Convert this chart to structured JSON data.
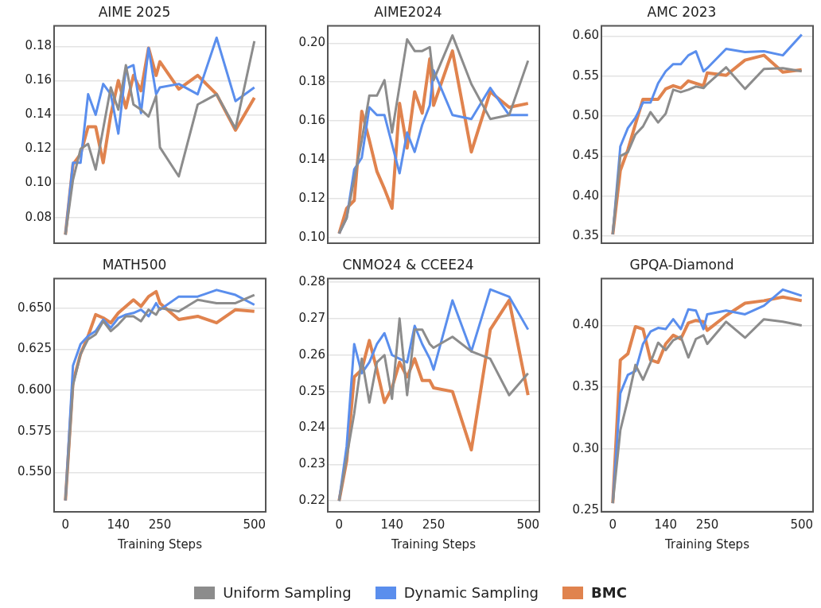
{
  "chart_data": [
    {
      "type": "line",
      "title": "AIME 2025",
      "x": [
        0,
        20,
        40,
        60,
        80,
        100,
        120,
        140,
        160,
        180,
        200,
        220,
        240,
        250,
        300,
        350,
        400,
        450,
        500
      ],
      "xlim": [
        -30,
        530
      ],
      "xticks": [
        0,
        140,
        250,
        500
      ],
      "ylim": [
        0.065,
        0.192
      ],
      "yticks": [
        0.08,
        {
          "value": 0.1,
          "label": "0.10"
        },
        0.12,
        0.14,
        0.16,
        0.18
      ],
      "grid": "y",
      "legend": "bottom",
      "tick_labels": "y",
      "series": [
        {
          "name": "Uniform Sampling",
          "color": "#8c8c8c",
          "values": [
            0.07,
            0.102,
            0.12,
            0.123,
            0.108,
            0.132,
            0.156,
            0.143,
            0.169,
            0.146,
            0.143,
            0.139,
            0.151,
            0.121,
            0.104,
            0.146,
            0.152,
            0.132,
            0.183
          ]
        },
        {
          "name": "Dynamic Sampling",
          "color": "#5a8eed",
          "values": [
            0.07,
            0.112,
            0.112,
            0.152,
            0.14,
            0.158,
            0.152,
            0.129,
            0.167,
            0.169,
            0.141,
            0.179,
            0.152,
            0.156,
            0.158,
            0.152,
            0.185,
            0.148,
            0.156
          ]
        },
        {
          "name": "BMC",
          "color": "#e0834e",
          "values": [
            0.07,
            0.111,
            0.117,
            0.133,
            0.133,
            0.112,
            0.14,
            0.16,
            0.144,
            0.163,
            0.154,
            0.179,
            0.163,
            0.171,
            0.155,
            0.163,
            0.152,
            0.131,
            0.15
          ]
        }
      ]
    },
    {
      "type": "line",
      "title": "AIME2024",
      "x": [
        0,
        20,
        40,
        60,
        80,
        100,
        120,
        140,
        160,
        180,
        200,
        220,
        240,
        250,
        300,
        350,
        400,
        450,
        500
      ],
      "xlim": [
        -30,
        530
      ],
      "xticks": [
        0,
        140,
        250,
        500
      ],
      "ylim": [
        0.097,
        0.209
      ],
      "yticks": [
        {
          "value": 0.1,
          "label": "0.10"
        },
        0.12,
        0.14,
        0.16,
        0.18,
        {
          "value": 0.2,
          "label": "0.20"
        }
      ],
      "grid": "y",
      "tick_labels": "y",
      "series": [
        {
          "color": "#8c8c8c",
          "values": [
            0.102,
            0.11,
            0.13,
            0.15,
            0.173,
            0.173,
            0.181,
            0.154,
            0.178,
            0.202,
            0.196,
            0.196,
            0.198,
            0.181,
            0.204,
            0.179,
            0.161,
            0.163,
            0.191
          ]
        },
        {
          "color": "#5a8eed",
          "values": [
            0.102,
            0.11,
            0.135,
            0.141,
            0.167,
            0.163,
            0.163,
            0.148,
            0.133,
            0.154,
            0.144,
            0.158,
            0.168,
            0.186,
            0.163,
            0.161,
            0.177,
            0.163,
            0.163
          ]
        },
        {
          "color": "#e0834e",
          "values": [
            0.102,
            0.115,
            0.119,
            0.165,
            0.15,
            0.134,
            0.125,
            0.115,
            0.169,
            0.146,
            0.175,
            0.164,
            0.192,
            0.168,
            0.196,
            0.144,
            0.175,
            0.167,
            0.169
          ]
        }
      ]
    },
    {
      "type": "line",
      "title": "AMC 2023",
      "x": [
        0,
        20,
        40,
        60,
        80,
        100,
        120,
        140,
        160,
        180,
        200,
        220,
        240,
        250,
        300,
        350,
        400,
        450,
        500
      ],
      "xlim": [
        -30,
        530
      ],
      "xticks": [
        0,
        140,
        250,
        500
      ],
      "ylim": [
        0.341,
        0.613
      ],
      "yticks": [
        0.35,
        {
          "value": 0.4,
          "label": "0.40"
        },
        0.45,
        {
          "value": 0.5,
          "label": "0.50"
        },
        0.55,
        {
          "value": 0.6,
          "label": "0.60"
        }
      ],
      "grid": "y",
      "tick_labels": "y",
      "series": [
        {
          "color": "#8c8c8c",
          "values": [
            0.352,
            0.45,
            0.455,
            0.477,
            0.487,
            0.505,
            0.492,
            0.503,
            0.533,
            0.53,
            0.533,
            0.537,
            0.535,
            0.54,
            0.561,
            0.534,
            0.559,
            0.56,
            0.556
          ]
        },
        {
          "color": "#5a8eed",
          "values": [
            0.352,
            0.462,
            0.485,
            0.498,
            0.517,
            0.517,
            0.541,
            0.556,
            0.565,
            0.565,
            0.576,
            0.581,
            0.556,
            0.56,
            0.584,
            0.58,
            0.581,
            0.576,
            0.602
          ]
        },
        {
          "color": "#e0834e",
          "values": [
            0.352,
            0.432,
            0.458,
            0.49,
            0.521,
            0.521,
            0.521,
            0.534,
            0.538,
            0.535,
            0.544,
            0.541,
            0.538,
            0.554,
            0.551,
            0.57,
            0.576,
            0.555,
            0.558
          ]
        }
      ]
    },
    {
      "type": "line",
      "title": "MATH500",
      "xlabel": "Training Steps",
      "x": [
        0,
        20,
        40,
        60,
        80,
        100,
        120,
        140,
        160,
        180,
        200,
        220,
        240,
        250,
        300,
        350,
        400,
        450,
        500
      ],
      "xlim": [
        -30,
        530
      ],
      "xticks": [
        0,
        140,
        250,
        500
      ],
      "ylim": [
        0.526,
        0.668
      ],
      "yticks": [
        {
          "value": 0.55,
          "label": "0.550"
        },
        0.575,
        {
          "value": 0.6,
          "label": "0.600"
        },
        0.625,
        {
          "value": 0.65,
          "label": "0.650"
        }
      ],
      "grid": "y",
      "series": [
        {
          "color": "#8c8c8c",
          "values": [
            0.533,
            0.603,
            0.622,
            0.631,
            0.634,
            0.642,
            0.636,
            0.64,
            0.645,
            0.645,
            0.642,
            0.649,
            0.646,
            0.65,
            0.648,
            0.655,
            0.653,
            0.653,
            0.658
          ]
        },
        {
          "color": "#5a8eed",
          "values": [
            0.533,
            0.615,
            0.628,
            0.633,
            0.636,
            0.643,
            0.638,
            0.644,
            0.646,
            0.647,
            0.649,
            0.645,
            0.653,
            0.649,
            0.657,
            0.657,
            0.661,
            0.658,
            0.652
          ]
        },
        {
          "color": "#e0834e",
          "values": [
            0.533,
            0.605,
            0.622,
            0.633,
            0.646,
            0.644,
            0.641,
            0.647,
            0.651,
            0.655,
            0.651,
            0.657,
            0.66,
            0.653,
            0.643,
            0.645,
            0.641,
            0.649,
            0.648
          ]
        }
      ]
    },
    {
      "type": "line",
      "title": "CNMO24 & CCEE24",
      "xlabel": "Training Steps",
      "x": [
        0,
        20,
        40,
        60,
        80,
        100,
        120,
        140,
        160,
        180,
        200,
        220,
        240,
        250,
        300,
        350,
        400,
        450,
        500
      ],
      "xlim": [
        -30,
        530
      ],
      "xticks": [
        0,
        140,
        250,
        500
      ],
      "ylim": [
        0.217,
        0.281
      ],
      "yticks": [
        0.22,
        0.23,
        0.24,
        0.25,
        0.26,
        0.27,
        0.28
      ],
      "grid": "y",
      "series": [
        {
          "color": "#8c8c8c",
          "values": [
            0.22,
            0.232,
            0.244,
            0.259,
            0.247,
            0.258,
            0.26,
            0.248,
            0.27,
            0.249,
            0.267,
            0.267,
            0.263,
            0.262,
            0.265,
            0.261,
            0.259,
            0.249,
            0.255
          ]
        },
        {
          "color": "#5a8eed",
          "values": [
            0.22,
            0.235,
            0.263,
            0.255,
            0.258,
            0.263,
            0.266,
            0.26,
            0.259,
            0.258,
            0.268,
            0.263,
            0.259,
            0.256,
            0.275,
            0.261,
            0.278,
            0.276,
            0.267
          ]
        },
        {
          "color": "#e0834e",
          "values": [
            0.22,
            0.231,
            0.254,
            0.256,
            0.264,
            0.256,
            0.247,
            0.251,
            0.258,
            0.254,
            0.259,
            0.253,
            0.253,
            0.251,
            0.25,
            0.234,
            0.267,
            0.275,
            0.249
          ]
        }
      ]
    },
    {
      "type": "line",
      "title": "GPQA-Diamond",
      "xlabel": "Training Steps",
      "x": [
        0,
        20,
        40,
        60,
        80,
        100,
        120,
        140,
        160,
        180,
        200,
        220,
        240,
        250,
        300,
        350,
        400,
        450,
        500
      ],
      "xlim": [
        -30,
        530
      ],
      "xticks": [
        0,
        140,
        250,
        500
      ],
      "ylim": [
        0.249,
        0.438
      ],
      "yticks": [
        0.25,
        {
          "value": 0.3,
          "label": "0.30"
        },
        0.35,
        {
          "value": 0.4,
          "label": "0.40"
        }
      ],
      "grid": "y",
      "series": [
        {
          "color": "#8c8c8c",
          "values": [
            0.256,
            0.315,
            0.34,
            0.368,
            0.356,
            0.37,
            0.386,
            0.38,
            0.388,
            0.391,
            0.374,
            0.389,
            0.392,
            0.385,
            0.403,
            0.39,
            0.405,
            0.403,
            0.4
          ]
        },
        {
          "color": "#5a8eed",
          "values": [
            0.256,
            0.345,
            0.36,
            0.363,
            0.385,
            0.395,
            0.398,
            0.397,
            0.405,
            0.397,
            0.413,
            0.412,
            0.397,
            0.409,
            0.412,
            0.409,
            0.416,
            0.429,
            0.424
          ]
        },
        {
          "color": "#e0834e",
          "values": [
            0.256,
            0.372,
            0.377,
            0.399,
            0.397,
            0.372,
            0.37,
            0.385,
            0.392,
            0.389,
            0.402,
            0.404,
            0.403,
            0.396,
            0.408,
            0.418,
            0.42,
            0.423,
            0.42
          ]
        }
      ]
    }
  ]
}
